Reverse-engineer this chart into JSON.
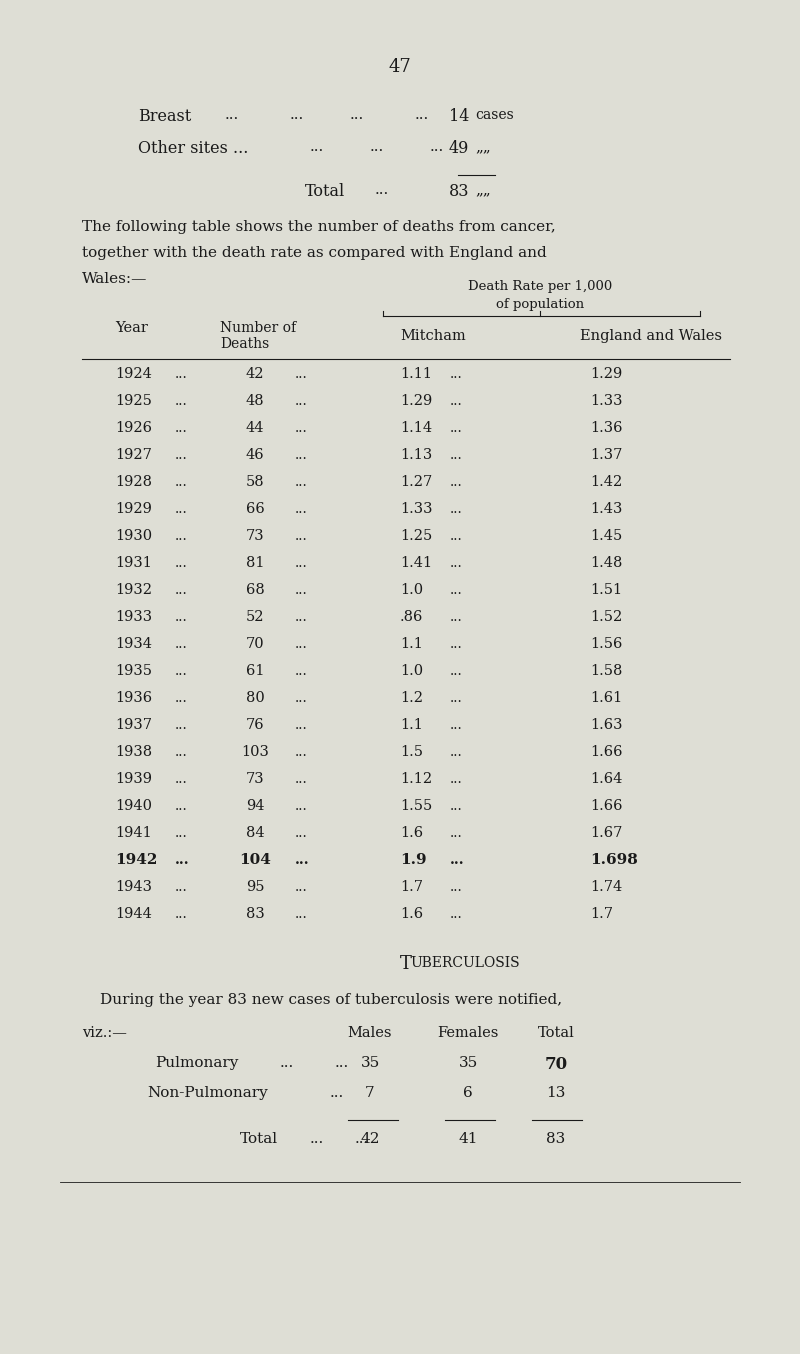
{
  "bg_color": "#deded5",
  "text_color": "#1a1a1a",
  "page_number": "47",
  "breast_label": "Breast",
  "other_label": "Other sites ...",
  "other_value": "49",
  "breast_value": "14",
  "breast_unit": "cases",
  "total_label": "Total",
  "total_value": "83",
  "comma_unit": "„„",
  "para1": "The following table shows the number of deaths from cancer,",
  "para2": "together with the death rate as compared with England and",
  "para3": "Wales:—",
  "col_header_right": "Death Rate per 1,000",
  "col_header_right2": "of population",
  "col1": "Year",
  "col2_line1": "Number of",
  "col2_line2": "Deaths",
  "col3": "Mitcham",
  "col4": "England and Wales",
  "table_data": [
    [
      "1924",
      "42",
      "1.11",
      "1.29"
    ],
    [
      "1925",
      "48",
      "1.29",
      "1.33"
    ],
    [
      "1926",
      "44",
      "1.14",
      "1.36"
    ],
    [
      "1927",
      "46",
      "1.13",
      "1.37"
    ],
    [
      "1928",
      "58",
      "1.27",
      "1.42"
    ],
    [
      "1929",
      "66",
      "1.33",
      "1.43"
    ],
    [
      "1930",
      "73",
      "1.25",
      "1.45"
    ],
    [
      "1931",
      "81",
      "1.41",
      "1.48"
    ],
    [
      "1932",
      "68",
      "1.0",
      "1.51"
    ],
    [
      "1933",
      "52",
      ".86",
      "1.52"
    ],
    [
      "1934",
      "70",
      "1.1",
      "1.56"
    ],
    [
      "1935",
      "61",
      "1.0",
      "1.58"
    ],
    [
      "1936",
      "80",
      "1.2",
      "1.61"
    ],
    [
      "1937",
      "76",
      "1.1",
      "1.63"
    ],
    [
      "1938",
      "103",
      "1.5",
      "1.66"
    ],
    [
      "1939",
      "73",
      "1.12",
      "1.64"
    ],
    [
      "1940",
      "94",
      "1.55",
      "1.66"
    ],
    [
      "1941",
      "84",
      "1.6",
      "1.67"
    ],
    [
      "1942",
      "104",
      "1.9",
      "1.698"
    ],
    [
      "1943",
      "95",
      "1.7",
      "1.74"
    ],
    [
      "1944",
      "83",
      "1.6",
      "1.7"
    ]
  ],
  "bold_row": "1942",
  "tb_heading_T": "T",
  "tb_heading_rest": "UBERCULOSIS",
  "tb_para": "During the year 83 new cases of tuberculosis were notified,",
  "tb_viz": "viz.:—",
  "tb_col1": "Males",
  "tb_col2": "Females",
  "tb_col3": "Total",
  "tb_row1_label": "Pulmonary",
  "tb_row1_dots1": "...",
  "tb_row1_dots2": "...",
  "tb_row1": [
    "35",
    "35",
    "70"
  ],
  "tb_row2_label": "Non-Pulmonary",
  "tb_row2_dots": "...",
  "tb_row2": [
    "7",
    "6",
    "13"
  ],
  "tb_total_label": "Total",
  "tb_total_dots": "...",
  "tb_total": [
    "42",
    "41",
    "83"
  ],
  "figwidth": 8.0,
  "figheight": 13.54,
  "dpi": 100
}
